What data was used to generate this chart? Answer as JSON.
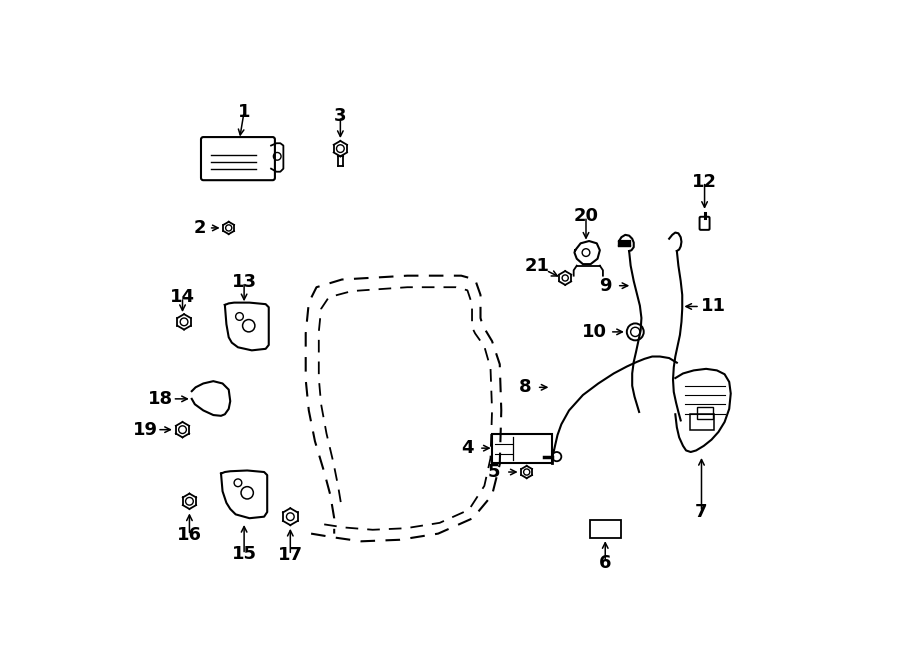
{
  "bg_color": "#ffffff",
  "line_color": "#000000",
  "label_fontsize": 13,
  "figsize": [
    9.0,
    6.61
  ],
  "dpi": 100
}
